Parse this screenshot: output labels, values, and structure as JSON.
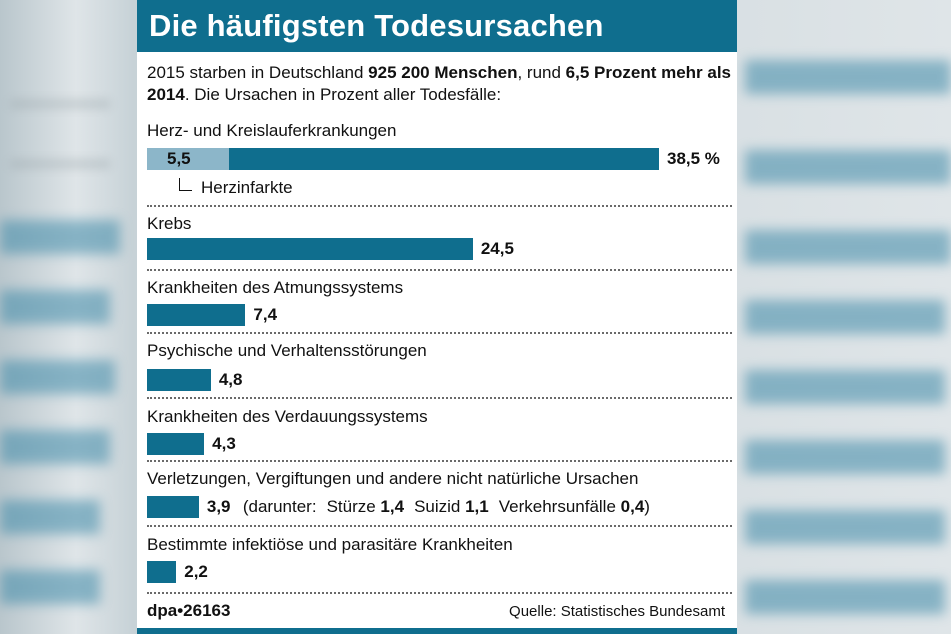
{
  "header": {
    "title": "Die häufigsten Todesursachen"
  },
  "intro": {
    "part1": "2015 starben in Deutschland ",
    "bold1": "925 200 Menschen",
    "part2": ", rund ",
    "bold2": "6,5 Prozent mehr als 2014",
    "part3": ". Die Ursachen in Prozent aller Todesfälle:"
  },
  "colors": {
    "bar": "#0f6e8e",
    "sub_bar": "#8cb6c9",
    "header": "#0f6e8e"
  },
  "chart_data": {
    "type": "bar",
    "orientation": "horizontal",
    "unit": "%",
    "xlim": [
      0,
      38.5
    ],
    "categories": [
      "Herz- und Kreislauferkrankungen",
      "Krebs",
      "Krankheiten des Atmungssystems",
      "Psychische und Verhaltensstörungen",
      "Krankheiten des Verdauungssystems",
      "Verletzungen, Vergiftungen und andere nicht natürliche Ursachen",
      "Bestimmte infektiöse und parasitäre Krankheiten"
    ],
    "values": [
      38.5,
      24.5,
      7.4,
      4.8,
      4.3,
      3.9,
      2.2
    ],
    "value_labels": [
      "38,5 %",
      "24,5",
      "7,4",
      "4,8",
      "4,3",
      "3,9",
      "2,2"
    ],
    "sub_segment": {
      "category_index": 0,
      "value": 5.5,
      "value_label": "5,5",
      "label": "Herzinfarkte"
    },
    "breakdown": {
      "category_index": 5,
      "prefix": "(darunter:",
      "items": [
        {
          "label": "Stürze",
          "value": "1,4"
        },
        {
          "label": "Suizid",
          "value": "1,1"
        },
        {
          "label": "Verkehrsunfälle",
          "value": "0,4"
        }
      ],
      "suffix": ")"
    }
  },
  "footer": {
    "credit": "dpa•26163",
    "source": "Quelle: Statistisches Bundesamt"
  }
}
